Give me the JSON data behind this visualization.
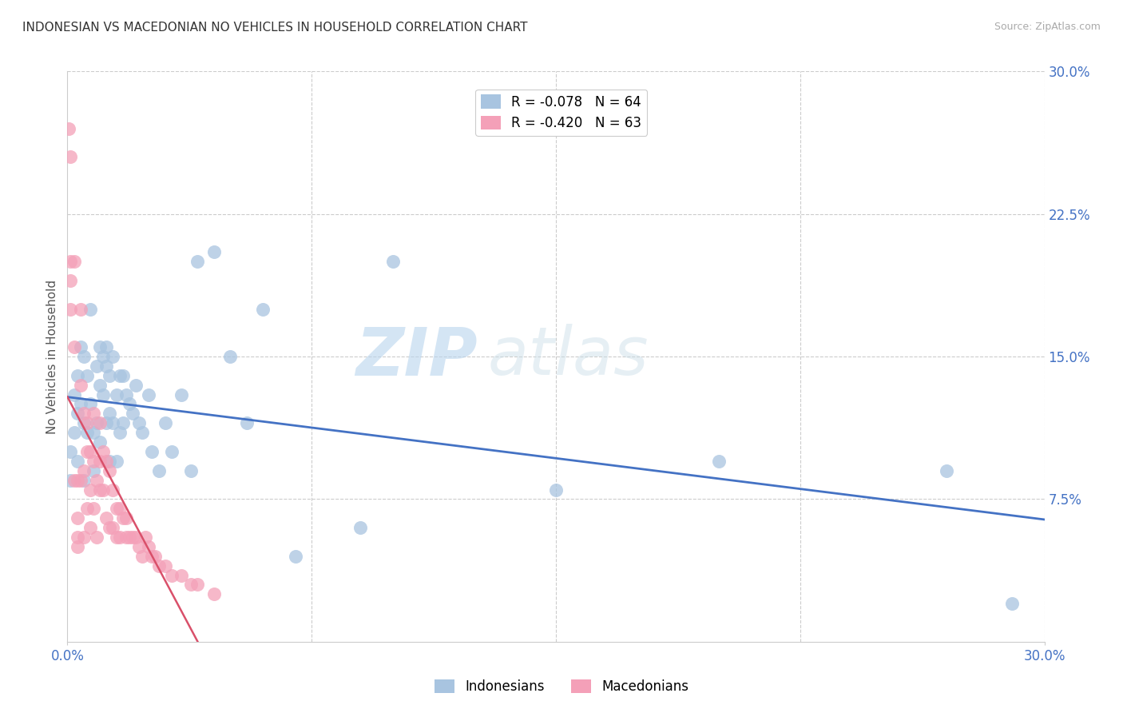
{
  "title": "INDONESIAN VS MACEDONIAN NO VEHICLES IN HOUSEHOLD CORRELATION CHART",
  "source": "Source: ZipAtlas.com",
  "ylabel": "No Vehicles in Household",
  "xlim": [
    0.0,
    0.3
  ],
  "ylim": [
    0.0,
    0.3
  ],
  "yticks_right": [
    0.075,
    0.15,
    0.225,
    0.3
  ],
  "ytick_labels_right": [
    "7.5%",
    "15.0%",
    "22.5%",
    "30.0%"
  ],
  "indonesian_color": "#a8c4e0",
  "macedonian_color": "#f4a0b8",
  "indonesian_line_color": "#4472c4",
  "macedonian_line_color": "#d9506a",
  "background_color": "#ffffff",
  "grid_color": "#cccccc",
  "title_fontsize": 11,
  "watermark": "ZIPatlas",
  "indonesian_R": -0.078,
  "macedonian_R": -0.42,
  "indonesian_N": 64,
  "macedonian_N": 63,
  "indonesian_x": [
    0.001,
    0.001,
    0.002,
    0.002,
    0.003,
    0.003,
    0.003,
    0.004,
    0.004,
    0.005,
    0.005,
    0.005,
    0.006,
    0.006,
    0.007,
    0.007,
    0.008,
    0.008,
    0.009,
    0.009,
    0.01,
    0.01,
    0.01,
    0.011,
    0.011,
    0.012,
    0.012,
    0.012,
    0.013,
    0.013,
    0.013,
    0.014,
    0.014,
    0.015,
    0.015,
    0.016,
    0.016,
    0.017,
    0.017,
    0.018,
    0.019,
    0.02,
    0.021,
    0.022,
    0.023,
    0.025,
    0.026,
    0.028,
    0.03,
    0.032,
    0.035,
    0.038,
    0.04,
    0.045,
    0.05,
    0.055,
    0.06,
    0.07,
    0.09,
    0.1,
    0.15,
    0.2,
    0.27,
    0.29
  ],
  "indonesian_y": [
    0.1,
    0.085,
    0.13,
    0.11,
    0.14,
    0.12,
    0.095,
    0.155,
    0.125,
    0.15,
    0.115,
    0.085,
    0.14,
    0.11,
    0.175,
    0.125,
    0.11,
    0.09,
    0.145,
    0.115,
    0.155,
    0.135,
    0.105,
    0.15,
    0.13,
    0.155,
    0.145,
    0.115,
    0.14,
    0.12,
    0.095,
    0.15,
    0.115,
    0.13,
    0.095,
    0.14,
    0.11,
    0.14,
    0.115,
    0.13,
    0.125,
    0.12,
    0.135,
    0.115,
    0.11,
    0.13,
    0.1,
    0.09,
    0.115,
    0.1,
    0.13,
    0.09,
    0.2,
    0.205,
    0.15,
    0.115,
    0.175,
    0.045,
    0.06,
    0.2,
    0.08,
    0.095,
    0.09,
    0.02
  ],
  "macedonian_x": [
    0.0005,
    0.001,
    0.001,
    0.001,
    0.001,
    0.002,
    0.002,
    0.002,
    0.003,
    0.003,
    0.003,
    0.003,
    0.004,
    0.004,
    0.004,
    0.005,
    0.005,
    0.005,
    0.006,
    0.006,
    0.006,
    0.007,
    0.007,
    0.007,
    0.008,
    0.008,
    0.008,
    0.009,
    0.009,
    0.01,
    0.01,
    0.01,
    0.011,
    0.011,
    0.012,
    0.012,
    0.013,
    0.013,
    0.014,
    0.014,
    0.015,
    0.015,
    0.016,
    0.016,
    0.017,
    0.018,
    0.018,
    0.019,
    0.02,
    0.021,
    0.022,
    0.023,
    0.024,
    0.025,
    0.026,
    0.027,
    0.028,
    0.03,
    0.032,
    0.035,
    0.038,
    0.04,
    0.045
  ],
  "macedonian_y": [
    0.27,
    0.255,
    0.2,
    0.19,
    0.175,
    0.2,
    0.155,
    0.085,
    0.085,
    0.065,
    0.055,
    0.05,
    0.175,
    0.135,
    0.085,
    0.12,
    0.09,
    0.055,
    0.115,
    0.1,
    0.07,
    0.1,
    0.08,
    0.06,
    0.12,
    0.095,
    0.07,
    0.085,
    0.055,
    0.115,
    0.095,
    0.08,
    0.1,
    0.08,
    0.095,
    0.065,
    0.09,
    0.06,
    0.08,
    0.06,
    0.07,
    0.055,
    0.07,
    0.055,
    0.065,
    0.065,
    0.055,
    0.055,
    0.055,
    0.055,
    0.05,
    0.045,
    0.055,
    0.05,
    0.045,
    0.045,
    0.04,
    0.04,
    0.035,
    0.035,
    0.03,
    0.03,
    0.025
  ]
}
